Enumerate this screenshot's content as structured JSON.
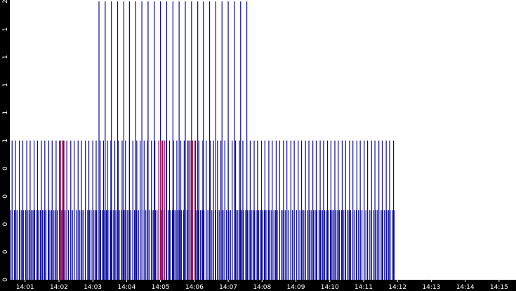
{
  "chart_data": {
    "type": "bar",
    "title": "",
    "xlabel": "",
    "ylabel": "",
    "ylim": [
      0,
      2
    ],
    "grid": false,
    "legend": "none",
    "colors": {
      "series_primary": "#0a0aa0",
      "series_overlap": "#a0145a",
      "axis_band": "#000000",
      "tick_text": "#ffffff",
      "background": "#ffffff"
    },
    "y_ticks": [
      {
        "value": 0,
        "label": "0"
      },
      {
        "value": 0.2,
        "label": "0"
      },
      {
        "value": 0.4,
        "label": "0"
      },
      {
        "value": 0.6,
        "label": "0"
      },
      {
        "value": 0.8,
        "label": "0"
      },
      {
        "value": 1.0,
        "label": "1"
      },
      {
        "value": 1.2,
        "label": "1"
      },
      {
        "value": 1.4,
        "label": "1"
      },
      {
        "value": 1.6,
        "label": "1"
      },
      {
        "value": 1.8,
        "label": "1"
      },
      {
        "value": 2.0,
        "label": "2"
      }
    ],
    "x_ticks": [
      "14:01",
      "14:02",
      "14:03",
      "14:04",
      "14:05",
      "14:06",
      "14:07",
      "14:08",
      "14:09",
      "14:10",
      "14:11",
      "14:12",
      "14:13",
      "14:14",
      "14:15"
    ],
    "x_range": [
      "14:00:33",
      "14:15:30"
    ],
    "value_groups": [
      {
        "value": 2.0,
        "times": [
          "14:03:11",
          "14:03:22",
          "14:03:33",
          "14:03:44",
          "14:03:55",
          "14:04:05",
          "14:04:16",
          "14:04:27",
          "14:04:38",
          "14:04:49",
          "14:05:00",
          "14:05:11",
          "14:05:22",
          "14:05:33",
          "14:05:44",
          "14:05:55",
          "14:06:06",
          "14:06:16",
          "14:06:27",
          "14:06:38",
          "14:06:49",
          "14:07:00",
          "14:07:11",
          "14:07:22",
          "14:07:33"
        ]
      },
      {
        "value": 1.0,
        "times": [
          "14:00:37",
          "14:00:43",
          "14:00:50",
          "14:00:56",
          "14:01:03",
          "14:01:09",
          "14:01:16",
          "14:01:22",
          "14:01:29",
          "14:01:35",
          "14:01:42",
          "14:01:48",
          "14:01:55",
          "14:02:01",
          "14:02:08",
          "14:02:14",
          "14:02:21",
          "14:02:27",
          "14:02:34",
          "14:02:40",
          "14:02:47",
          "14:02:53",
          "14:03:00",
          "14:03:06",
          "14:03:13",
          "14:03:19",
          "14:03:26",
          "14:03:32",
          "14:03:39",
          "14:03:45",
          "14:03:52",
          "14:03:58",
          "14:04:05",
          "14:04:11",
          "14:04:18",
          "14:04:24",
          "14:04:31",
          "14:04:37",
          "14:04:44",
          "14:04:50",
          "14:04:57",
          "14:05:03",
          "14:05:10",
          "14:05:16",
          "14:05:23",
          "14:05:29",
          "14:05:36",
          "14:05:42",
          "14:05:49",
          "14:05:55",
          "14:06:02",
          "14:06:08",
          "14:06:15",
          "14:06:21",
          "14:06:28",
          "14:06:34",
          "14:06:41",
          "14:06:47",
          "14:06:54",
          "14:07:00",
          "14:07:07",
          "14:07:13",
          "14:07:20",
          "14:07:26",
          "14:07:33",
          "14:07:39",
          "14:07:46",
          "14:07:52",
          "14:07:59",
          "14:08:05",
          "14:08:12",
          "14:08:18",
          "14:08:25",
          "14:08:31",
          "14:08:38",
          "14:08:44",
          "14:08:51",
          "14:08:57",
          "14:09:04",
          "14:09:10",
          "14:09:17",
          "14:09:23",
          "14:09:30",
          "14:09:36",
          "14:09:43",
          "14:09:49",
          "14:09:56",
          "14:10:02",
          "14:10:09",
          "14:10:15",
          "14:10:22",
          "14:10:28",
          "14:10:35",
          "14:10:41",
          "14:10:48",
          "14:10:54",
          "14:11:01",
          "14:11:07",
          "14:11:14",
          "14:11:20",
          "14:11:27",
          "14:11:33",
          "14:11:40",
          "14:11:46",
          "14:11:53"
        ]
      },
      {
        "value": 0.5,
        "times": [
          "14:00:34",
          "14:00:37",
          "14:00:41",
          "14:00:44",
          "14:00:47",
          "14:00:51",
          "14:00:54",
          "14:00:57",
          "14:01:01",
          "14:01:04",
          "14:01:07",
          "14:01:11",
          "14:01:14",
          "14:01:17",
          "14:01:21",
          "14:01:24",
          "14:01:27",
          "14:01:31",
          "14:01:34",
          "14:01:37",
          "14:01:41",
          "14:01:44",
          "14:01:47",
          "14:01:51",
          "14:01:54",
          "14:01:57",
          "14:02:01",
          "14:02:04",
          "14:02:07",
          "14:02:11",
          "14:02:14",
          "14:02:17",
          "14:02:21",
          "14:02:24",
          "14:02:27",
          "14:02:31",
          "14:02:34",
          "14:02:37",
          "14:02:41",
          "14:02:44",
          "14:02:47",
          "14:02:51",
          "14:02:54",
          "14:02:57",
          "14:03:01",
          "14:03:04",
          "14:03:07",
          "14:03:11",
          "14:03:14",
          "14:03:17",
          "14:03:21",
          "14:03:24",
          "14:03:27",
          "14:03:31",
          "14:03:34",
          "14:03:37",
          "14:03:41",
          "14:03:44",
          "14:03:47",
          "14:03:51",
          "14:03:54",
          "14:03:57",
          "14:04:01",
          "14:04:04",
          "14:04:07",
          "14:04:11",
          "14:04:14",
          "14:04:17",
          "14:04:21",
          "14:04:24",
          "14:04:27",
          "14:04:31",
          "14:04:34",
          "14:04:37",
          "14:04:41",
          "14:04:44",
          "14:04:47",
          "14:04:51",
          "14:04:54",
          "14:04:57",
          "14:05:01",
          "14:05:04",
          "14:05:07",
          "14:05:11",
          "14:05:14",
          "14:05:17",
          "14:05:21",
          "14:05:24",
          "14:05:27",
          "14:05:31",
          "14:05:34",
          "14:05:37",
          "14:05:41",
          "14:05:44",
          "14:05:47",
          "14:05:51",
          "14:05:54",
          "14:05:57",
          "14:06:01",
          "14:06:04",
          "14:06:07",
          "14:06:11",
          "14:06:14",
          "14:06:17",
          "14:06:21",
          "14:06:24",
          "14:06:27",
          "14:06:31",
          "14:06:34",
          "14:06:37",
          "14:06:41",
          "14:06:44",
          "14:06:47",
          "14:06:51",
          "14:06:54",
          "14:06:57",
          "14:07:01",
          "14:07:04",
          "14:07:07",
          "14:07:11",
          "14:07:14",
          "14:07:17",
          "14:07:21",
          "14:07:24",
          "14:07:27",
          "14:07:31",
          "14:07:34",
          "14:07:37",
          "14:07:41",
          "14:07:44",
          "14:07:47",
          "14:07:51",
          "14:07:54",
          "14:07:57",
          "14:08:01",
          "14:08:04",
          "14:08:07",
          "14:08:11",
          "14:08:14",
          "14:08:17",
          "14:08:21",
          "14:08:24",
          "14:08:27",
          "14:08:31",
          "14:08:34",
          "14:08:37",
          "14:08:41",
          "14:08:44",
          "14:08:47",
          "14:08:51",
          "14:08:54",
          "14:08:57",
          "14:09:01",
          "14:09:04",
          "14:09:07",
          "14:09:11",
          "14:09:14",
          "14:09:17",
          "14:09:21",
          "14:09:24",
          "14:09:27",
          "14:09:31",
          "14:09:34",
          "14:09:37",
          "14:09:41",
          "14:09:44",
          "14:09:47",
          "14:09:51",
          "14:09:54",
          "14:09:57",
          "14:10:01",
          "14:10:04",
          "14:10:07",
          "14:10:11",
          "14:10:14",
          "14:10:17",
          "14:10:21",
          "14:10:24",
          "14:10:27",
          "14:10:31",
          "14:10:34",
          "14:10:37",
          "14:10:41",
          "14:10:44",
          "14:10:47",
          "14:10:51",
          "14:10:54",
          "14:10:57",
          "14:11:01",
          "14:11:04",
          "14:11:07",
          "14:11:11",
          "14:11:14",
          "14:11:17",
          "14:11:21",
          "14:11:24",
          "14:11:27",
          "14:11:31",
          "14:11:34",
          "14:11:37",
          "14:11:41",
          "14:11:44",
          "14:11:47",
          "14:11:51",
          "14:11:54"
        ]
      }
    ],
    "overlap_times": [
      "14:02:03",
      "14:02:06",
      "14:02:09",
      "14:04:57",
      "14:05:00",
      "14:05:04",
      "14:05:07",
      "14:05:48",
      "14:05:51",
      "14:05:54",
      "14:05:57",
      "14:06:01"
    ]
  }
}
